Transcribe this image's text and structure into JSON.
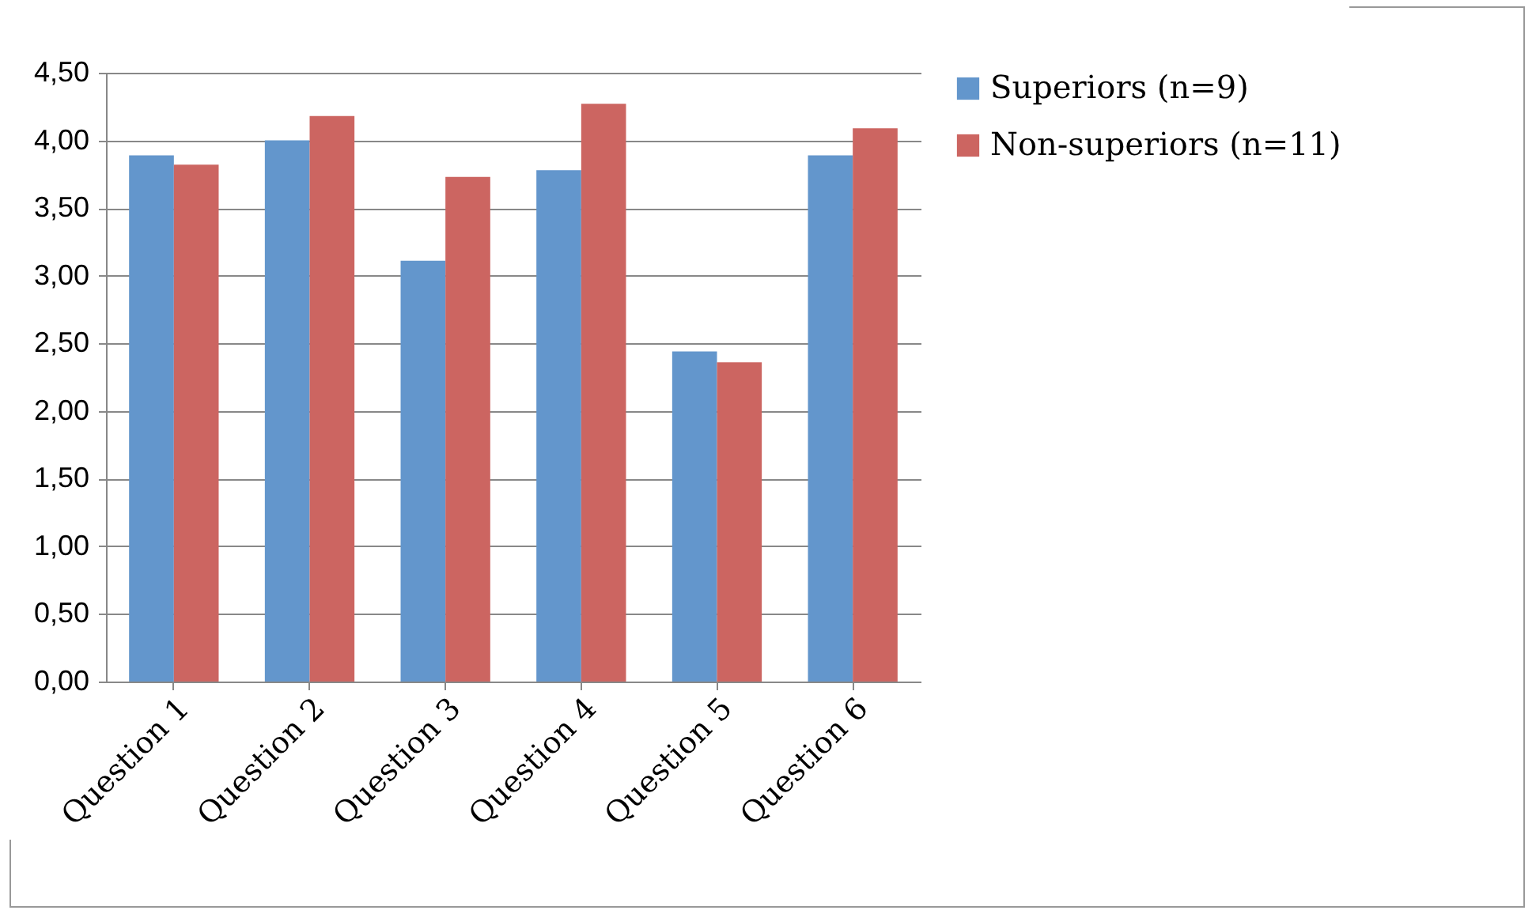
{
  "chart_data": {
    "type": "bar",
    "categories": [
      "Question 1",
      "Question 2",
      "Question 3",
      "Question 4",
      "Question 5",
      "Question 6"
    ],
    "series": [
      {
        "name": "Superiors (n=9)",
        "color": "#6396cc",
        "values": [
          3.89,
          4.0,
          3.11,
          3.78,
          2.44,
          3.89
        ]
      },
      {
        "name": "Non-superiors (n=11)",
        "color": "#cc6561",
        "values": [
          3.82,
          4.18,
          3.73,
          4.27,
          2.36,
          4.09
        ]
      }
    ],
    "ylim": [
      0,
      4.5
    ],
    "yticks": [
      {
        "value": 0,
        "label": "0,00"
      },
      {
        "value": 0.5,
        "label": "0,50"
      },
      {
        "value": 1,
        "label": "1,00"
      },
      {
        "value": 1.5,
        "label": "1,50"
      },
      {
        "value": 2,
        "label": "2,00"
      },
      {
        "value": 2.5,
        "label": "2,50"
      },
      {
        "value": 3,
        "label": "3,00"
      },
      {
        "value": 3.5,
        "label": "3,50"
      },
      {
        "value": 4,
        "label": "4,00"
      },
      {
        "value": 4.5,
        "label": "4,50"
      }
    ],
    "grid": "y",
    "legend": "right"
  }
}
